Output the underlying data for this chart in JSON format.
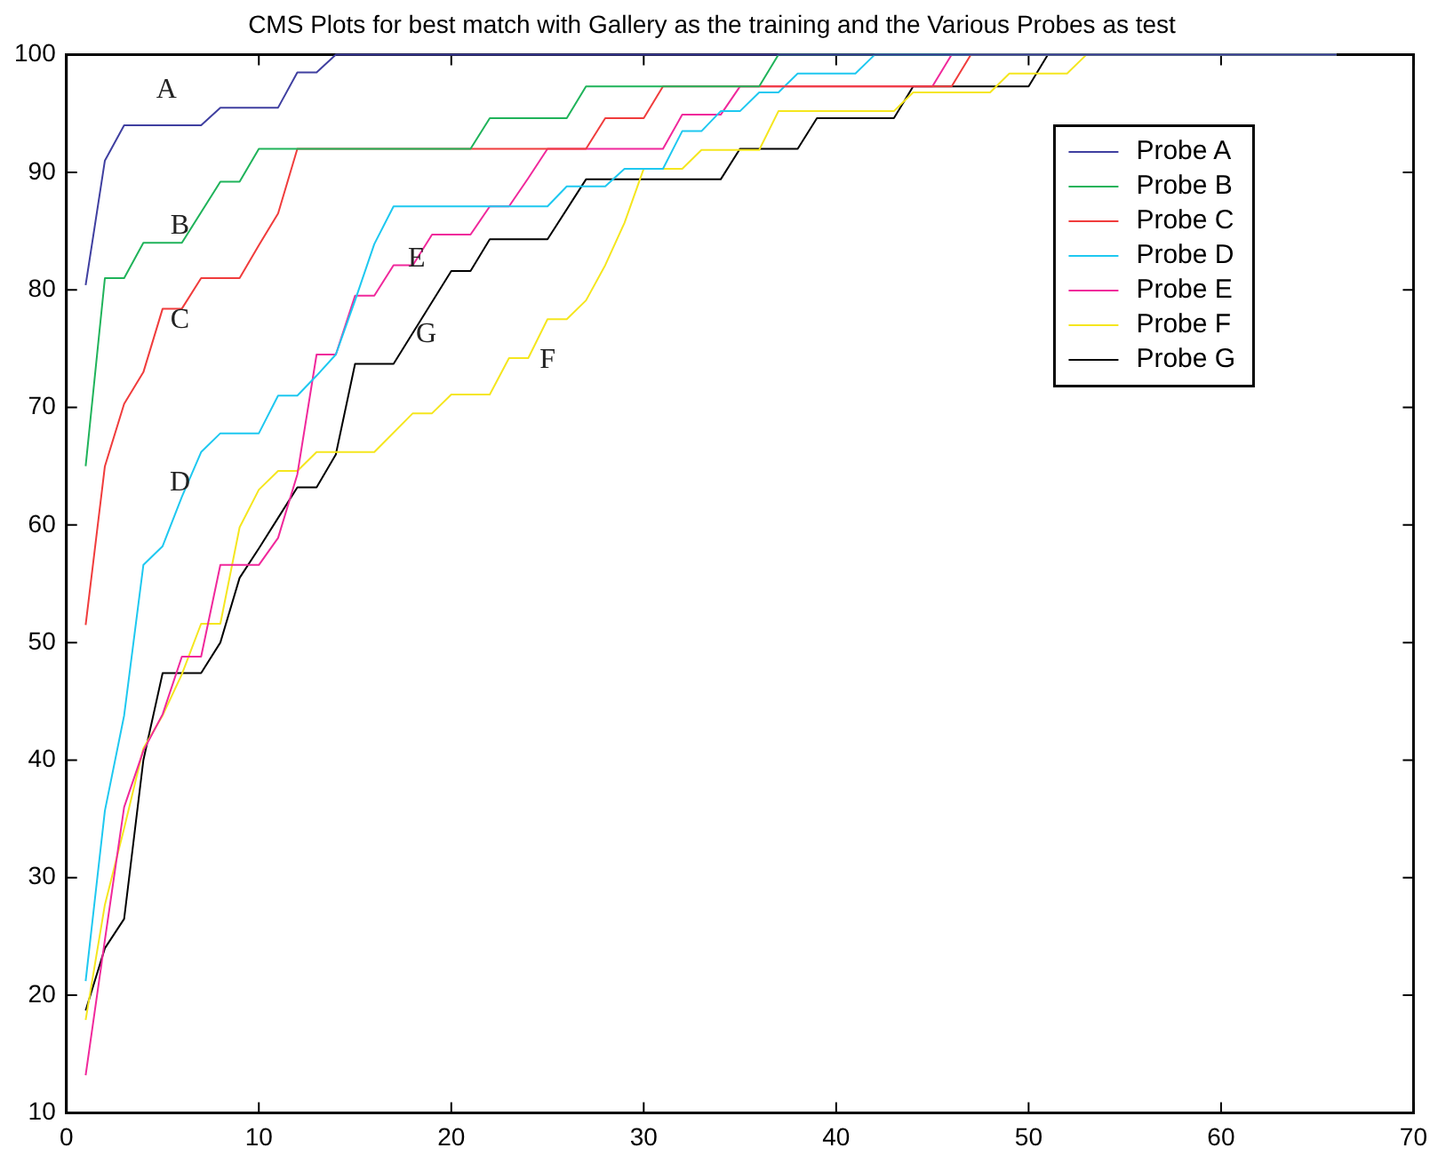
{
  "chart_data": {
    "type": "line",
    "title": "CMS Plots for best match with Gallery as the training and the Various Probes as test",
    "xlim": [
      0,
      70
    ],
    "xticks": [
      0,
      10,
      20,
      30,
      40,
      50,
      60,
      70
    ],
    "ylim": [
      10,
      100
    ],
    "yticks": [
      10,
      20,
      30,
      40,
      50,
      60,
      70,
      80,
      90,
      100
    ],
    "grid": false,
    "legend": "top right",
    "marker": "none",
    "line_style": "solid",
    "series": [
      {
        "name": "Probe A",
        "color": "#3f3fa0",
        "x": [
          1,
          2,
          3,
          7,
          8,
          11,
          12,
          13,
          14,
          66
        ],
        "values": [
          80.4,
          91,
          94,
          94,
          95.5,
          95.5,
          98.5,
          98.5,
          100,
          100
        ]
      },
      {
        "name": "Probe B",
        "color": "#1fb35a",
        "x": [
          1,
          2,
          3,
          4,
          6,
          8,
          9,
          10,
          21,
          22,
          26,
          27,
          36,
          37,
          66
        ],
        "values": [
          65,
          81,
          81,
          84,
          84,
          89.2,
          89.2,
          92,
          92,
          94.6,
          94.6,
          97.3,
          97.3,
          100,
          100
        ]
      },
      {
        "name": "Probe C",
        "color": "#f03c3c",
        "x": [
          1,
          2,
          3,
          4,
          5,
          6,
          7,
          9,
          10,
          11,
          12,
          27,
          28,
          30,
          31,
          46,
          47,
          66
        ],
        "values": [
          51.5,
          65,
          70.3,
          73,
          78.4,
          78.4,
          81,
          81,
          83.8,
          86.5,
          92,
          92,
          94.6,
          94.6,
          97.3,
          97.3,
          100,
          100
        ]
      },
      {
        "name": "Probe D",
        "color": "#1ec8f0",
        "x": [
          1,
          2,
          3,
          4,
          5,
          6,
          7,
          8,
          10,
          11,
          12,
          13,
          14,
          15,
          16,
          17,
          25,
          26,
          28,
          29,
          31,
          32,
          33,
          34,
          35,
          36,
          37,
          38,
          41,
          42,
          66
        ],
        "values": [
          21.2,
          35.7,
          43.8,
          56.6,
          58.2,
          62.4,
          66.2,
          67.8,
          67.8,
          71,
          71,
          72.7,
          74.5,
          79.1,
          83.9,
          87.1,
          87.1,
          88.8,
          88.8,
          90.3,
          90.3,
          93.5,
          93.5,
          95.2,
          95.2,
          96.8,
          96.8,
          98.4,
          98.4,
          100,
          100
        ]
      },
      {
        "name": "Probe E",
        "color": "#f0289b",
        "x": [
          1,
          2,
          3,
          4,
          5,
          6,
          7,
          8,
          10,
          11,
          12,
          13,
          14,
          15,
          16,
          17,
          18,
          19,
          21,
          22,
          23,
          24,
          25,
          31,
          32,
          34,
          35,
          45,
          46,
          66
        ],
        "values": [
          13.2,
          24.7,
          36,
          40.8,
          43.9,
          48.8,
          48.8,
          56.6,
          56.6,
          58.9,
          64.3,
          74.5,
          74.5,
          79.5,
          79.5,
          82.1,
          82.1,
          84.7,
          84.7,
          87.1,
          87.1,
          89.5,
          92,
          92,
          94.9,
          94.9,
          97.3,
          97.3,
          100,
          100
        ]
      },
      {
        "name": "Probe F",
        "color": "#f5e61e",
        "x": [
          1,
          2,
          3,
          4,
          5,
          6,
          7,
          8,
          9,
          10,
          11,
          12,
          13,
          16,
          18,
          19,
          20,
          22,
          23,
          24,
          25,
          26,
          27,
          28,
          29,
          30,
          32,
          33,
          36,
          37,
          43,
          44,
          48,
          49,
          52,
          53,
          66
        ],
        "values": [
          17.9,
          27.7,
          34.2,
          41,
          43.8,
          47.3,
          51.6,
          51.6,
          59.8,
          63,
          64.6,
          64.6,
          66.2,
          66.2,
          69.5,
          69.5,
          71.1,
          71.1,
          74.2,
          74.2,
          77.5,
          77.5,
          79.1,
          82.1,
          85.7,
          90.3,
          90.3,
          91.9,
          91.9,
          95.2,
          95.2,
          96.8,
          96.8,
          98.4,
          98.4,
          100,
          100
        ]
      },
      {
        "name": "Probe G",
        "color": "#000000",
        "x": [
          1,
          2,
          3,
          4,
          5,
          7,
          8,
          9,
          10,
          11,
          12,
          13,
          14,
          15,
          17,
          20,
          21,
          22,
          25,
          27,
          34,
          35,
          38,
          39,
          43,
          44,
          50,
          51,
          66
        ],
        "values": [
          18.7,
          24,
          26.5,
          40,
          47.4,
          47.4,
          50,
          55.5,
          58,
          60.6,
          63.2,
          63.2,
          66,
          73.7,
          73.7,
          81.6,
          81.6,
          84.3,
          84.3,
          89.4,
          89.4,
          92,
          92,
          94.6,
          94.6,
          97.3,
          97.3,
          100,
          100
        ]
      }
    ],
    "annotations": [
      "A",
      "B",
      "C",
      "D",
      "E",
      "G",
      "F"
    ]
  }
}
